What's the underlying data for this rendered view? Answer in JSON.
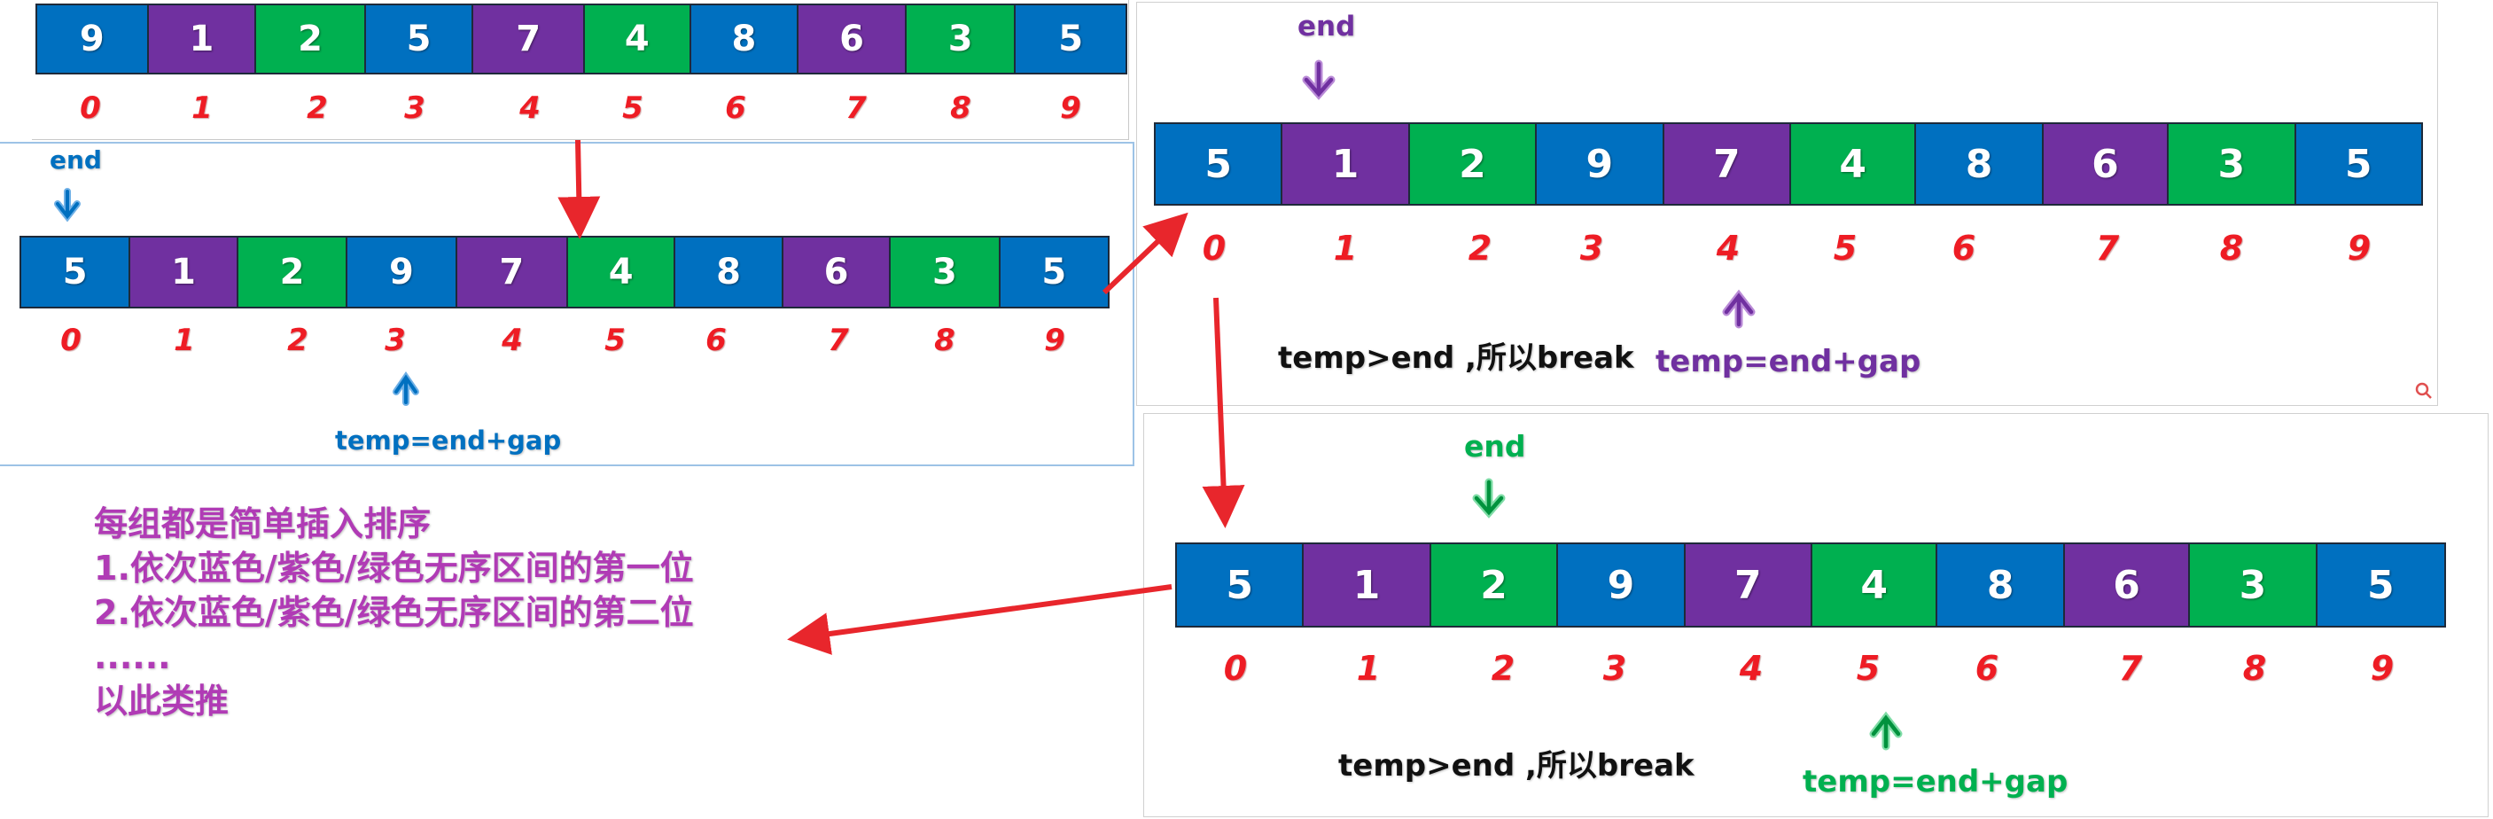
{
  "colors": {
    "blue": "#0070c0",
    "purple": "#7030a0",
    "green": "#00b050",
    "index_red": "#ee1c24",
    "arrow_red": "#e8262c",
    "text_black": "#111111",
    "desc_pink": "#b03bb5"
  },
  "groups_pattern": [
    "blue",
    "purple",
    "green",
    "blue",
    "purple",
    "green",
    "blue",
    "purple",
    "green",
    "blue"
  ],
  "indices": [
    "0",
    "1",
    "2",
    "3",
    "4",
    "5",
    "6",
    "7",
    "8",
    "9"
  ],
  "panel_top": {
    "values": [
      "9",
      "1",
      "2",
      "5",
      "7",
      "4",
      "8",
      "6",
      "3",
      "5"
    ]
  },
  "panel_left": {
    "values": [
      "5",
      "1",
      "2",
      "9",
      "7",
      "4",
      "8",
      "6",
      "3",
      "5"
    ],
    "end_label": "end",
    "temp_label": "temp=end+gap",
    "label_color": "#0070c0"
  },
  "panel_right_top": {
    "values": [
      "5",
      "1",
      "2",
      "9",
      "7",
      "4",
      "8",
      "6",
      "3",
      "5"
    ],
    "end_label": "end",
    "temp_label": "temp=end+gap",
    "break_label": "temp>end ,所以break",
    "label_color": "#7030a0"
  },
  "panel_right_bottom": {
    "values": [
      "5",
      "1",
      "2",
      "9",
      "7",
      "4",
      "8",
      "6",
      "3",
      "5"
    ],
    "end_label": "end",
    "temp_label": "temp=end+gap",
    "break_label": "temp>end ,所以break",
    "label_color": "#00b050"
  },
  "description": {
    "line1": "每组都是简单插入排序",
    "line2": "1.依次蓝色/紫色/绿色无序区间的第一位",
    "line3": "2.依次蓝色/紫色/绿色无序区间的第二位",
    "line4": "......",
    "line5": "以此类推"
  },
  "icons": {
    "zoom": "magnifier-icon"
  }
}
